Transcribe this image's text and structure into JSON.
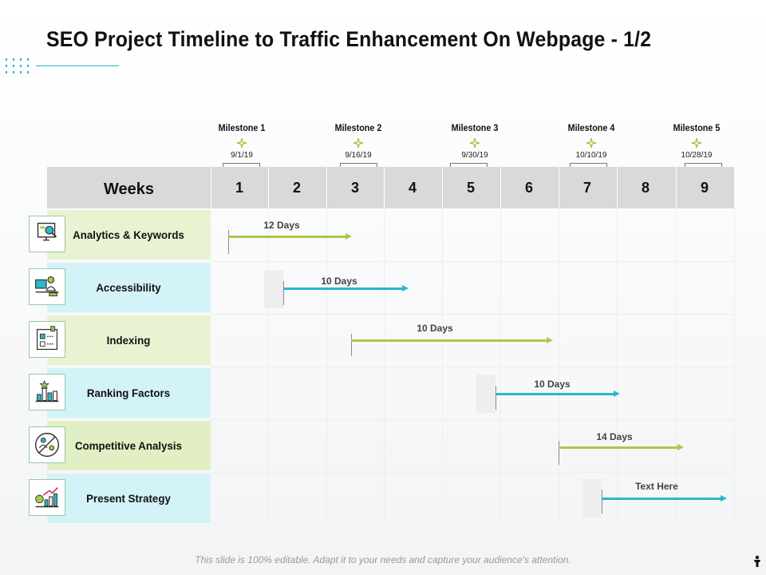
{
  "title": "SEO Project Timeline to Traffic Enhancement On Webpage - 1/2",
  "footer": "This slide is 100% editable. Adapt it to your needs and capture your audience's attention.",
  "colors": {
    "green": "#a8c94b",
    "teal": "#2bb7c9",
    "rowGreen": "#e9f3d2",
    "rowTeal": "#d3f3f8",
    "header": "#d9d9d9"
  },
  "milestones": [
    {
      "label": "Milestone 1",
      "date": "9/1/19"
    },
    {
      "label": "Milestone 2",
      "date": "9/16/19"
    },
    {
      "label": "Milestone 3",
      "date": "9/30/19"
    },
    {
      "label": "Milestone 4",
      "date": "10/10/19"
    },
    {
      "label": "Milestone 5",
      "date": "10/28/19"
    }
  ],
  "header": {
    "label": "Weeks",
    "weeks": [
      "1",
      "2",
      "3",
      "4",
      "5",
      "6",
      "7",
      "8",
      "9"
    ]
  },
  "tasks": [
    {
      "label": "Analytics & Keywords",
      "icon": "analytics-icon",
      "duration": "12 Days",
      "color": "green"
    },
    {
      "label": "Accessibility",
      "icon": "accessibility-icon",
      "duration": "10 Days",
      "color": "teal"
    },
    {
      "label": "Indexing",
      "icon": "indexing-icon",
      "duration": "10 Days",
      "color": "green"
    },
    {
      "label": "Ranking Factors",
      "icon": "ranking-icon",
      "duration": "10 Days",
      "color": "teal"
    },
    {
      "label": "Competitive Analysis",
      "icon": "competitive-icon",
      "duration": "14 Days",
      "color": "green"
    },
    {
      "label": "Present Strategy",
      "icon": "strategy-icon",
      "duration": "Text Here",
      "color": "teal"
    }
  ]
}
